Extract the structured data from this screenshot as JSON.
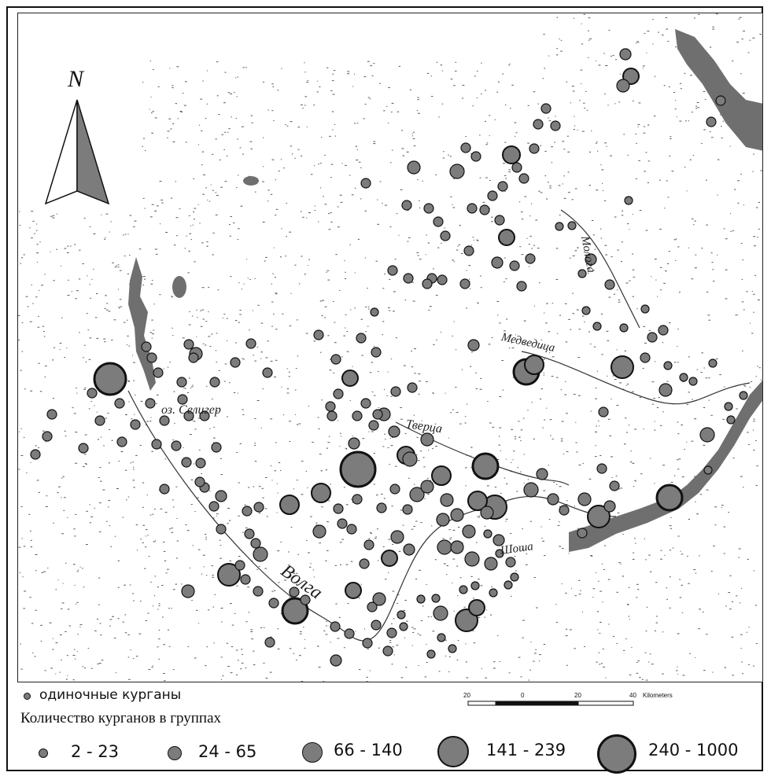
{
  "north": {
    "label": "N"
  },
  "rivers": {
    "molo": "Молога",
    "medv": "Медведица",
    "seliger": "оз. Селигер",
    "tvertsa": "Тверца",
    "shosha": "Шоша",
    "volga": "Волга"
  },
  "legend": {
    "single_label": "одиночные курганы",
    "groups_title": "Количество курганов в группах",
    "classes": [
      "2 - 23",
      "24 - 65",
      "66 - 140",
      "141 - 239",
      "240 - 1000"
    ]
  },
  "scale": {
    "ticks": [
      "20",
      "0",
      "20",
      "40"
    ],
    "unit": "Kilometers"
  },
  "colors": {
    "symbol_fill": "#7c7c7c",
    "symbol_stroke": "#111111",
    "water": "#6f6f6f"
  }
}
